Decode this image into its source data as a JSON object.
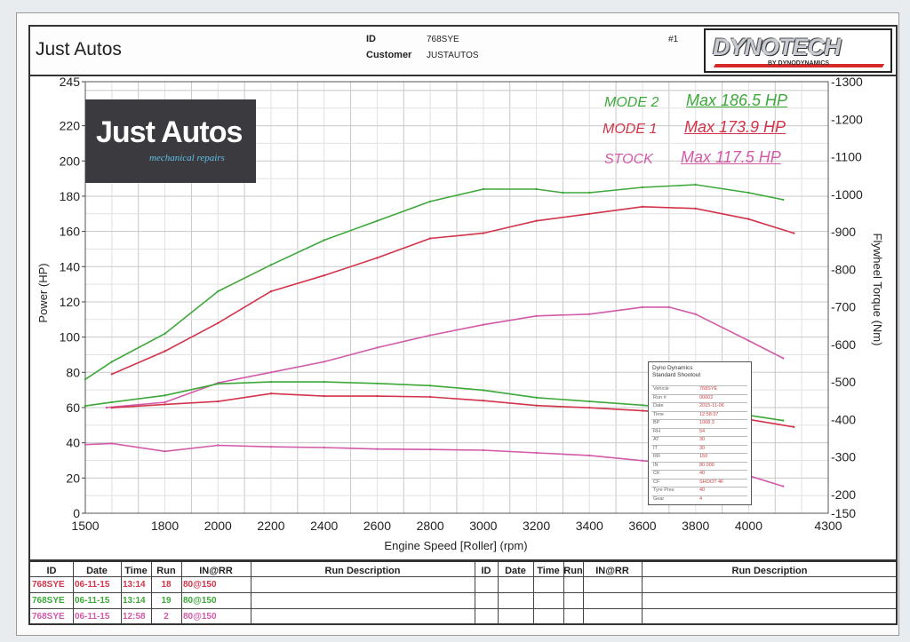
{
  "header": {
    "shop": "Just Autos",
    "id_label": "ID",
    "id_value": "768SYE",
    "customer_label": "Customer",
    "customer_value": "JUSTAUTOS",
    "run_no": "#1",
    "logo": "DYNOTECH",
    "logo_sub": "BY DYNODYNAMICS"
  },
  "badge": {
    "title": "Just Autos",
    "subtitle": "mechanical repairs"
  },
  "legend": [
    {
      "mode": "MODE 2",
      "max": "Max 186.5 HP",
      "color": "#3da83a"
    },
    {
      "mode": "MODE 1",
      "max": "Max 173.9 HP",
      "color": "#d2344a"
    },
    {
      "mode": "STOCK",
      "max": "Max 117.5 HP",
      "color": "#d25aa8"
    }
  ],
  "chart_data": {
    "type": "line",
    "xlabel": "Engine Speed [Roller] (rpm)",
    "ylabel": "Power (HP)",
    "y2label": "Flywheel Torque (Nm)",
    "xlim": [
      1500,
      4300
    ],
    "ylim": [
      0,
      245
    ],
    "y2lim": [
      150,
      1300
    ],
    "x_ticks": [
      "1500",
      "1800",
      "2000",
      "2200",
      "2400",
      "2600",
      "2800",
      "3000",
      "3200",
      "3400",
      "3600",
      "3800",
      "4000",
      "4300"
    ],
    "y_ticks": [
      "0",
      "20",
      "40",
      "60",
      "80",
      "100",
      "120",
      "140",
      "160",
      "180",
      "200",
      "220",
      "245"
    ],
    "y2_ticks": [
      "150",
      "200",
      "300",
      "400",
      "500",
      "600",
      "700",
      "800",
      "900",
      "1000",
      "1100",
      "1200",
      "1300"
    ],
    "grid": true,
    "series": [
      {
        "name": "MODE 2",
        "kind": "power",
        "color": "#3da83a",
        "x": [
          1500,
          1600,
          1800,
          2000,
          2200,
          2400,
          2600,
          2800,
          3000,
          3200,
          3300,
          3400,
          3600,
          3800,
          4000,
          4130
        ],
        "y": [
          76,
          86,
          102,
          126,
          141,
          155,
          166,
          177,
          184,
          184,
          182,
          182,
          185,
          186.5,
          182,
          178
        ]
      },
      {
        "name": "MODE 1",
        "kind": "power",
        "color": "#d2344a",
        "x": [
          1600,
          1800,
          2000,
          2200,
          2400,
          2600,
          2800,
          3000,
          3200,
          3400,
          3600,
          3800,
          4000,
          4170
        ],
        "y": [
          79,
          92,
          108,
          126,
          135,
          145,
          156,
          159,
          166,
          170,
          174,
          173,
          167,
          159
        ]
      },
      {
        "name": "STOCK",
        "kind": "power",
        "color": "#d25aa8",
        "x": [
          1580,
          1800,
          2000,
          2200,
          2400,
          2600,
          2800,
          3000,
          3200,
          3400,
          3600,
          3700,
          3800,
          4000,
          4130
        ],
        "y": [
          60,
          63,
          74,
          80,
          86,
          94,
          101,
          107,
          112,
          113,
          117,
          117,
          113,
          98,
          88
        ]
      },
      {
        "name": "MODE 2",
        "kind": "torque",
        "color": "#3da83a",
        "x": [
          1500,
          1600,
          1800,
          2000,
          2200,
          2400,
          2600,
          2800,
          3000,
          3200,
          3400,
          3600,
          3800,
          4000,
          4130
        ],
        "y": [
          436,
          446,
          464,
          495,
          500,
          500,
          496,
          490,
          478,
          458,
          448,
          438,
          425,
          411,
          397
        ]
      },
      {
        "name": "MODE 1",
        "kind": "torque",
        "color": "#d2344a",
        "x": [
          1600,
          1800,
          2000,
          2200,
          2400,
          2600,
          2800,
          3000,
          3200,
          3400,
          3600,
          3800,
          4000,
          4170
        ],
        "y": [
          431,
          440,
          448,
          469,
          462,
          462,
          460,
          450,
          437,
          431,
          423,
          413,
          400,
          380
        ]
      },
      {
        "name": "STOCK",
        "kind": "torque",
        "color": "#d25aa8",
        "x": [
          1500,
          1600,
          1800,
          2000,
          2200,
          2400,
          2600,
          2800,
          3000,
          3200,
          3400,
          3600,
          3800,
          4000,
          4130
        ],
        "y": [
          333,
          336,
          315,
          331,
          327,
          325,
          321,
          320,
          318,
          311,
          304,
          290,
          278,
          250,
          222
        ]
      }
    ]
  },
  "info_box": {
    "title": "Dyno Dynamics",
    "subtitle": "Standard Shootout",
    "rows": [
      {
        "k": "Vehicle",
        "v": "768SYE"
      },
      {
        "k": "Run #",
        "v": "00002"
      },
      {
        "k": "Date",
        "v": "2015-11-06"
      },
      {
        "k": "Time",
        "v": "12:58:37"
      },
      {
        "k": "BP",
        "v": "1008.3"
      },
      {
        "k": "RH",
        "v": "54"
      },
      {
        "k": "AT",
        "v": "30"
      },
      {
        "k": "IT",
        "v": "30"
      },
      {
        "k": "RR",
        "v": "150"
      },
      {
        "k": "IN",
        "v": "80.000"
      },
      {
        "k": "CK",
        "v": "40"
      },
      {
        "k": "CF",
        "v": "SHOOT 4F"
      },
      {
        "k": "Tyre Pres",
        "v": "40"
      },
      {
        "k": "Gear",
        "v": "4"
      }
    ]
  },
  "runs_table": {
    "headers": [
      "ID",
      "Date",
      "Time",
      "Run",
      "IN@RR",
      "Run Description",
      "ID",
      "Date",
      "Time",
      "Run",
      "IN@RR",
      "Run Description"
    ],
    "rows": [
      {
        "id": "768SYE",
        "date": "06-11-15",
        "time": "13:14",
        "run": "18",
        "inrr": "80@150",
        "color": "#d2344a"
      },
      {
        "id": "768SYE",
        "date": "06-11-15",
        "time": "13:14",
        "run": "19",
        "inrr": "80@150",
        "color": "#3da83a"
      },
      {
        "id": "768SYE",
        "date": "06-11-15",
        "time": "12:58",
        "run": "2",
        "inrr": "80@150",
        "color": "#d25aa8"
      }
    ]
  }
}
